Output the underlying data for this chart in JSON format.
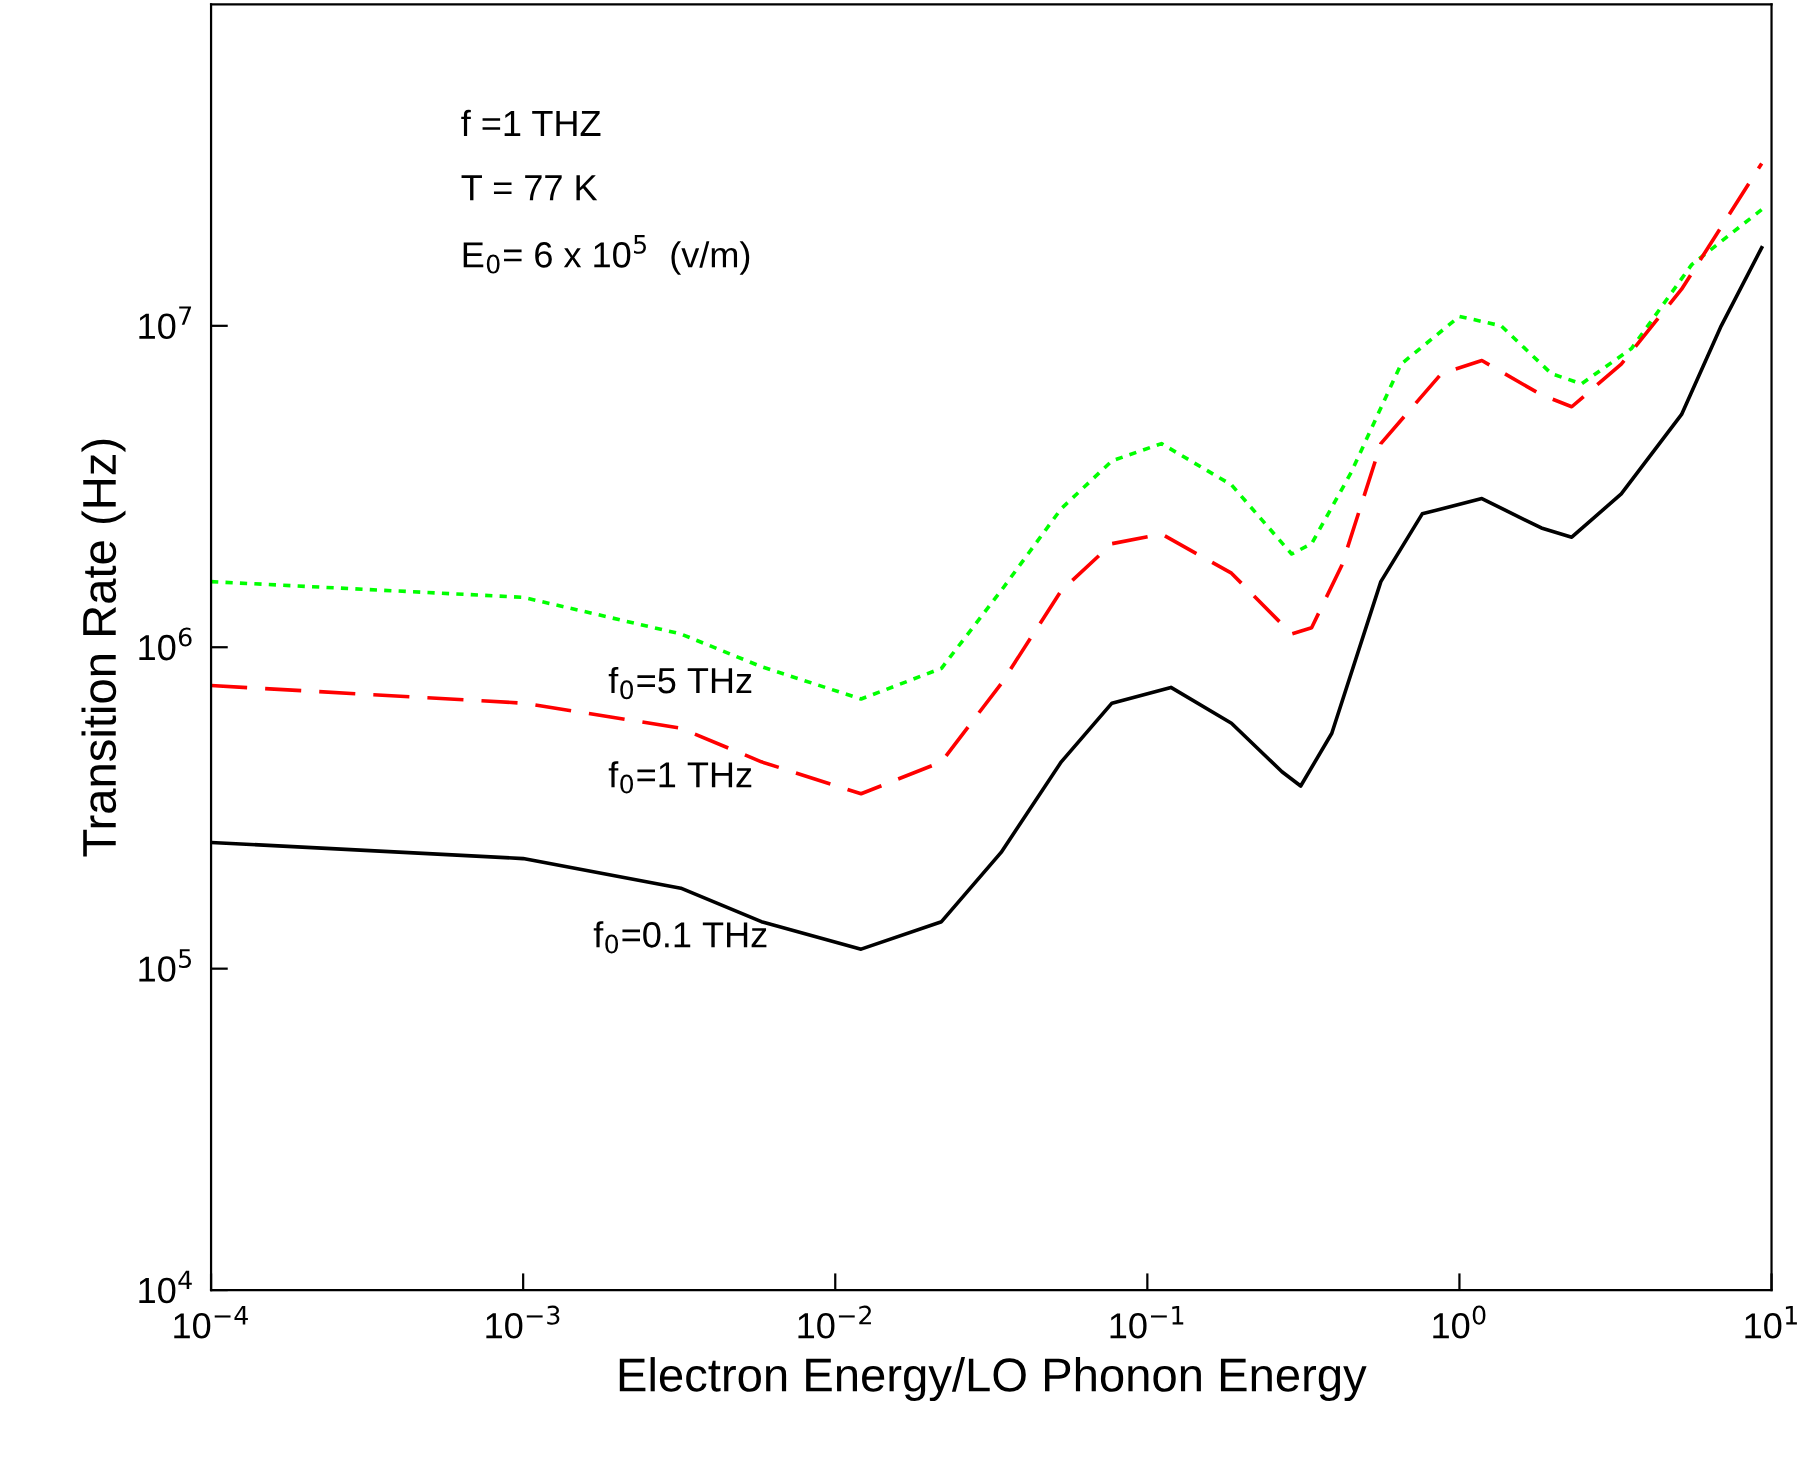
{
  "chart_data": {
    "type": "line",
    "xlabel": "Electron Energy/LO Phonon Energy",
    "ylabel": "Transition Rate (Hz)",
    "log": "xy",
    "xlim": [
      0.0001,
      10
    ],
    "ylim": [
      10000,
      100000000
    ],
    "xticks": [
      {
        "value": 0.0001,
        "label": "10$^{−4}$"
      },
      {
        "value": 0.001,
        "label": "10$^{−3}$"
      },
      {
        "value": 0.01,
        "label": "10$^{−2}$"
      },
      {
        "value": 0.1,
        "label": "10$^{−1}$"
      },
      {
        "value": 1,
        "label": "10$^{0}$"
      },
      {
        "value": 10,
        "label": "10$^{1}$"
      }
    ],
    "yticks": [
      {
        "value": 10000,
        "label": "10$^{4}$"
      },
      {
        "value": 100000,
        "label": "10$^{5}$"
      },
      {
        "value": 1000000,
        "label": "10$^{6}$"
      },
      {
        "value": 10000000,
        "label": "10$^{7}$"
      }
    ],
    "grid": false,
    "legend": false,
    "marker": "none",
    "annotations": [
      "f =1 THZ",
      "T = 77 K",
      "E$_{0}$= 6 x 10$^{5}$  (v/m)"
    ],
    "series": [
      {
        "name": "f$_{0}$=5 THz",
        "color": "#00ff00",
        "line_style": "dotted",
        "x": [
          0.0001,
          0.001,
          0.0032,
          0.0058,
          0.0121,
          0.0219,
          0.034,
          0.053,
          0.077,
          0.111,
          0.186,
          0.29,
          0.336,
          0.45,
          0.65,
          1.0,
          1.36,
          1.97,
          2.46,
          3.56,
          5.55,
          9.3
        ],
        "values": [
          1600000,
          1430000,
          1100000,
          870000,
          690000,
          860000,
          1500000,
          2700000,
          3800000,
          4300000,
          3200000,
          1950000,
          2100000,
          3500000,
          7600000,
          10700000,
          10000000,
          7100000,
          6600000,
          8500000,
          15500000,
          23000000
        ]
      },
      {
        "name": "f$_{0}$=1 THz",
        "color": "#ff0000",
        "line_style": "dashed",
        "x": [
          0.0001,
          0.001,
          0.0032,
          0.0058,
          0.0121,
          0.0219,
          0.034,
          0.053,
          0.077,
          0.111,
          0.186,
          0.29,
          0.336,
          0.42,
          0.56,
          0.875,
          1.18,
          1.83,
          2.29,
          3.3,
          5.15,
          9.3
        ],
        "values": [
          760000,
          670000,
          560000,
          440000,
          350000,
          440000,
          770000,
          1500000,
          2100000,
          2250000,
          1700000,
          1100000,
          1150000,
          1800000,
          4300000,
          7100000,
          7800000,
          6100000,
          5600000,
          7600000,
          13000000,
          32000000
        ]
      },
      {
        "name": "f$_{0}$=0.1 THz",
        "color": "#000000",
        "line_style": "solid",
        "x": [
          0.0001,
          0.001,
          0.0032,
          0.0058,
          0.0121,
          0.0219,
          0.034,
          0.053,
          0.077,
          0.119,
          0.186,
          0.27,
          0.31,
          0.39,
          0.56,
          0.76,
          1.18,
          1.83,
          2.29,
          3.3,
          5.15,
          6.9,
          9.3
        ],
        "values": [
          247000,
          220000,
          178000,
          140000,
          115000,
          140000,
          230000,
          440000,
          670000,
          750000,
          580000,
          410000,
          370000,
          540000,
          1600000,
          2600000,
          2900000,
          2350000,
          2200000,
          3000000,
          5300000,
          10000000,
          17500000
        ]
      }
    ]
  }
}
